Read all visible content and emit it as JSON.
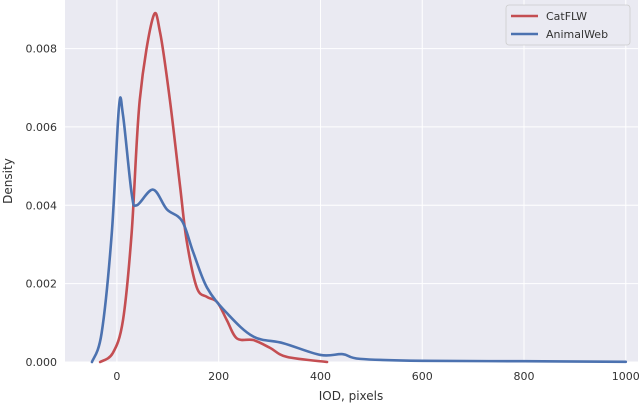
{
  "chart_data": {
    "type": "line",
    "title": "",
    "xlabel": "IOD, pixels",
    "ylabel": "Density",
    "xlim": [
      -102,
      1024
    ],
    "ylim": [
      0,
      0.00924
    ],
    "xticks": [
      0,
      200,
      400,
      600,
      800,
      1000
    ],
    "xtick_labels": [
      "0",
      "200",
      "400",
      "600",
      "800",
      "1000"
    ],
    "yticks": [
      0,
      0.002,
      0.004,
      0.006,
      0.008
    ],
    "ytick_labels": [
      "0.000",
      "0.002",
      "0.004",
      "0.006",
      "0.008"
    ],
    "grid": true,
    "legend_position": "top-right",
    "series": [
      {
        "name": "CatFLW",
        "color": "#c44e52",
        "x": [
          -33,
          -8,
          12,
          29,
          45,
          71,
          85,
          104,
          124,
          137,
          157,
          177,
          197,
          216,
          236,
          268,
          301,
          334,
          413
        ],
        "y": [
          0,
          0.00023,
          0.00107,
          0.0033,
          0.0067,
          0.0088,
          0.0084,
          0.0067,
          0.0045,
          0.0031,
          0.0019,
          0.00166,
          0.00153,
          0.00107,
          0.0006,
          0.00056,
          0.00036,
          0.00013,
          0
        ]
      },
      {
        "name": "AnimalWeb",
        "color": "#4c72b0",
        "x": [
          -49,
          -30,
          -10,
          4,
          12,
          29,
          39,
          71,
          98,
          128,
          150,
          177,
          216,
          268,
          327,
          400,
          444,
          478,
          600,
          800,
          1000
        ],
        "y": [
          0,
          0.00074,
          0.0033,
          0.0065,
          0.0063,
          0.0043,
          0.004,
          0.0044,
          0.0039,
          0.0036,
          0.0028,
          0.0019,
          0.00125,
          0.00065,
          0.00048,
          0.00018,
          0.0002,
          8e-05,
          3e-05,
          2e-05,
          5e-06
        ]
      }
    ]
  }
}
